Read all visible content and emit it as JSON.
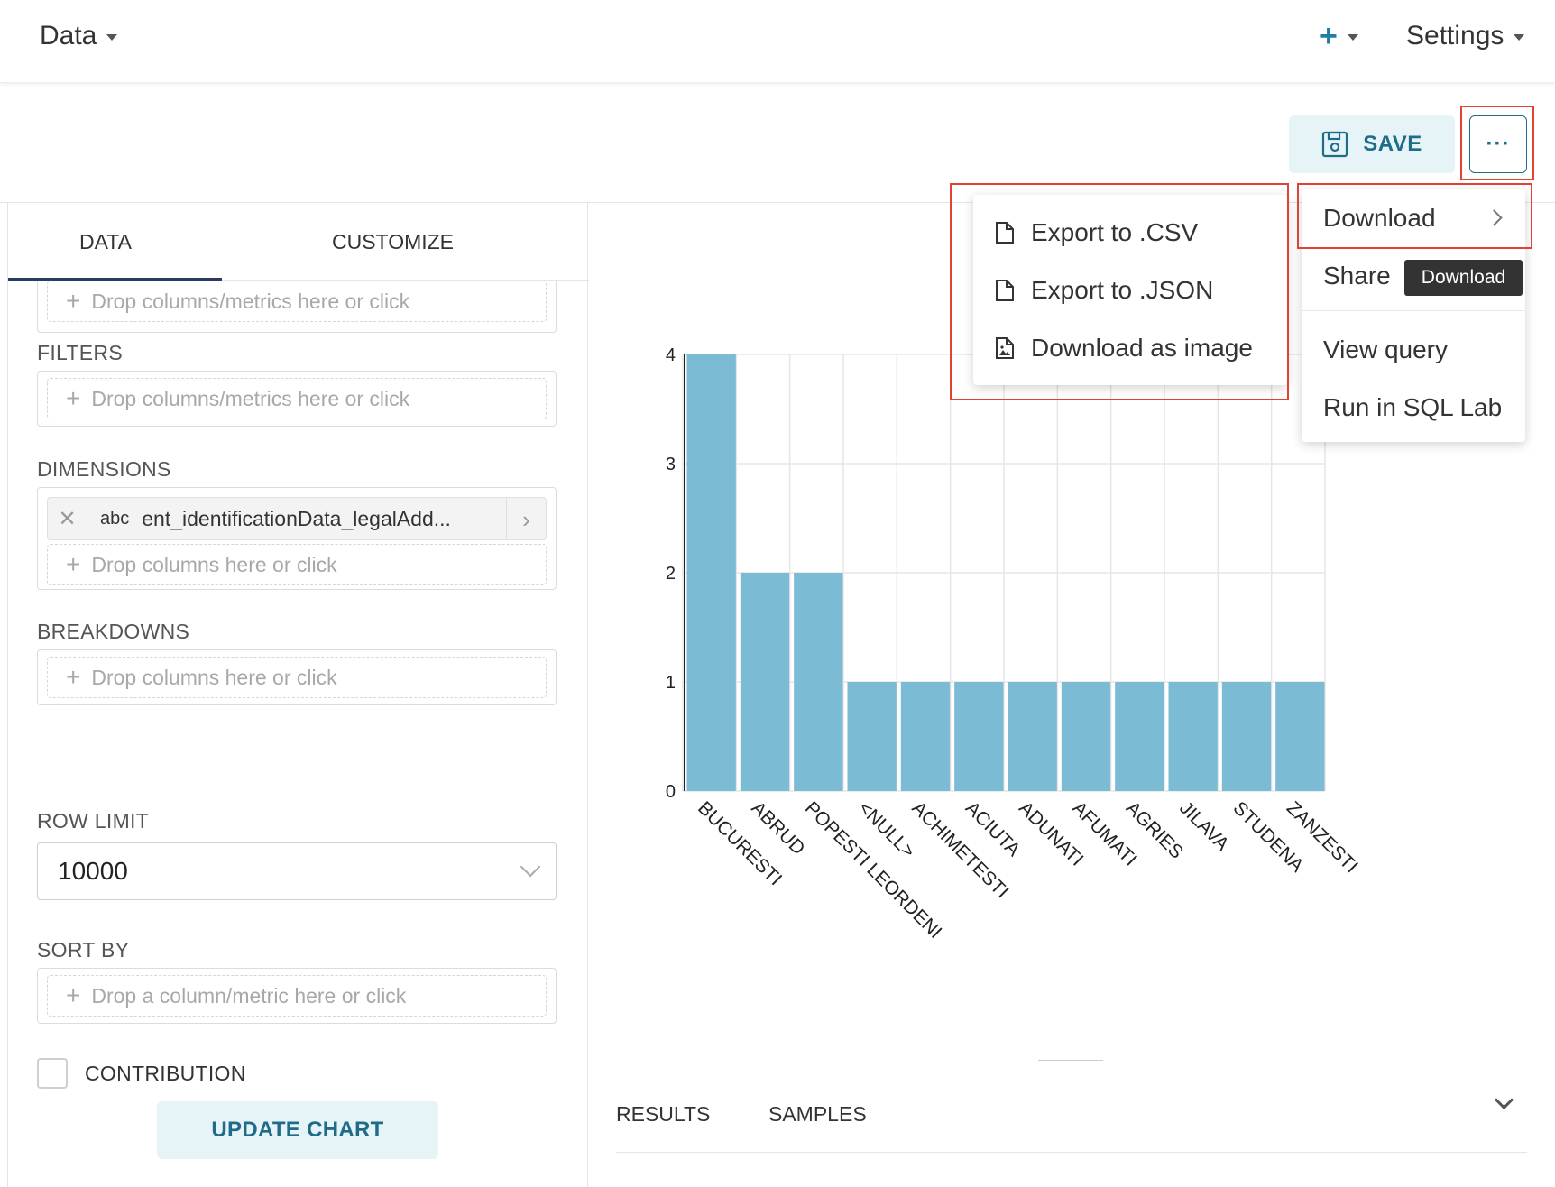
{
  "nav": {
    "data_label": "Data",
    "plus_label": "+",
    "settings_label": "Settings"
  },
  "header": {
    "save_label": "SAVE",
    "more_label": "···"
  },
  "panel": {
    "tabs": [
      {
        "label": "DATA",
        "active": true
      },
      {
        "label": "CUSTOMIZE",
        "active": false
      }
    ],
    "metrics_drop_placeholder": "Drop columns/metrics here or click",
    "filters": {
      "label": "FILTERS",
      "placeholder": "Drop columns/metrics here or click"
    },
    "dimensions": {
      "label": "DIMENSIONS",
      "selected": {
        "type": "abc",
        "name": "ent_identificationData_legalAdd..."
      },
      "placeholder": "Drop columns here or click"
    },
    "breakdowns": {
      "label": "BREAKDOWNS",
      "placeholder": "Drop columns here or click"
    },
    "row_limit": {
      "label": "ROW LIMIT",
      "value": "10000"
    },
    "sort_by": {
      "label": "SORT BY",
      "placeholder": "Drop a column/metric here or click"
    },
    "contribution": {
      "label": "CONTRIBUTION",
      "checked": false
    },
    "update_label": "UPDATE CHART"
  },
  "chart_data": {
    "type": "bar",
    "categories": [
      "BUCURESTI",
      "ABRUD",
      "POPESTI LEORDENI",
      "<NULL>",
      "ACHIMETESTI",
      "ACIUTA",
      "ADUNATI",
      "AFUMATI",
      "AGRIES",
      "JILAVA",
      "STUDENA",
      "ZANZESTI"
    ],
    "values": [
      4,
      2,
      2,
      1,
      1,
      1,
      1,
      1,
      1,
      1,
      1,
      1
    ],
    "ylim": [
      0,
      4
    ],
    "yticks": [
      0,
      1,
      2,
      3,
      4
    ],
    "grid": true,
    "bar_color": "#7bbbd4"
  },
  "results": {
    "tabs": [
      "RESULTS",
      "SAMPLES"
    ]
  },
  "more_menu": {
    "items": [
      {
        "label": "Download",
        "has_submenu": true
      },
      {
        "label": "Share"
      },
      {
        "label": "View query"
      },
      {
        "label": "Run in SQL Lab"
      }
    ],
    "tooltip": "Download"
  },
  "download_submenu": {
    "items": [
      {
        "label": "Export to .CSV",
        "icon": "file-icon"
      },
      {
        "label": "Export to .JSON",
        "icon": "file-icon"
      },
      {
        "label": "Download as image",
        "icon": "file-image-icon"
      }
    ]
  },
  "colors": {
    "accent": "#1f6c88",
    "highlight": "#e04335",
    "button_bg": "#e6f4f7"
  }
}
